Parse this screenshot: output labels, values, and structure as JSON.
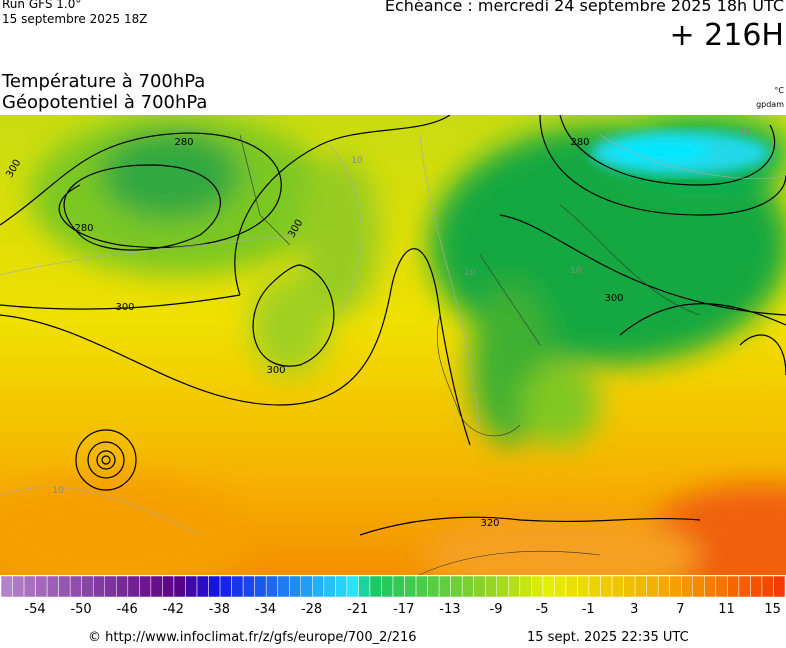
{
  "header": {
    "run": "Run GFS 1.0°",
    "run_date": "15 septembre 2025 18Z",
    "valid_time": "Echéance : mercredi 24 septembre 2025 18h UTC",
    "lead": "+ 216H",
    "title_line1": "Température à 700hPa",
    "title_line2": "Géopotentiel à 700hPa",
    "unit_temperature": "°C",
    "unit_geopotential": "gpdam"
  },
  "contour_labels": [
    "300",
    "280",
    "280",
    "300",
    "300",
    "300",
    "280",
    "300",
    "320",
    "10",
    "10",
    "10",
    "10",
    "10"
  ],
  "legend": {
    "ticks": [
      -54,
      -50,
      -46,
      -42,
      -38,
      -34,
      -28,
      -21,
      -17,
      -13,
      -9,
      -5,
      -1,
      3,
      7,
      11,
      15
    ]
  },
  "footer": {
    "source": "© http://www.infoclimat.fr/z/gfs/europe/700_2/216",
    "generated": "15 sept. 2025 22:35 UTC"
  }
}
